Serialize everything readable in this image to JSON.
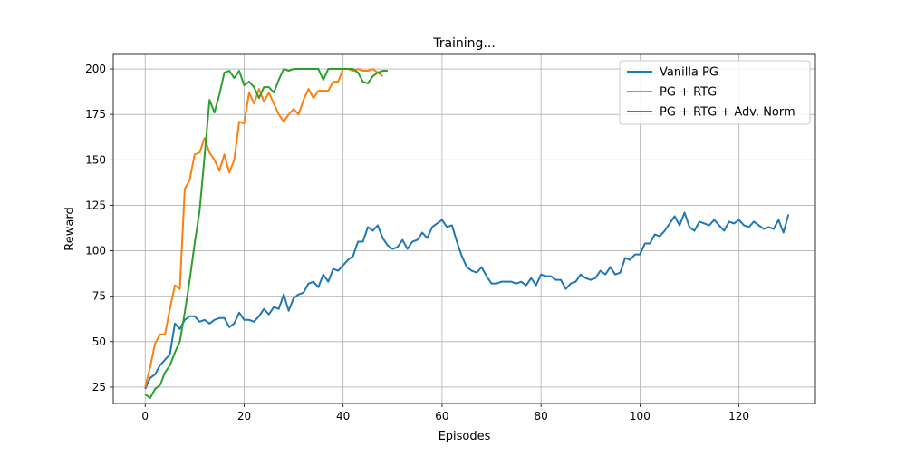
{
  "chart_data": {
    "type": "line",
    "title": "Training...",
    "xlabel": "Episodes",
    "ylabel": "Reward",
    "xlim": [
      -6.45,
      135.45
    ],
    "ylim": [
      16,
      208
    ],
    "xticks": [
      0,
      20,
      40,
      60,
      80,
      100,
      120
    ],
    "yticks": [
      25,
      50,
      75,
      100,
      125,
      150,
      175,
      200
    ],
    "grid": true,
    "legend_position": "upper right",
    "series": [
      {
        "name": "Vanilla PG",
        "color": "#1f77b4",
        "values": [
          24,
          30,
          32,
          37,
          40,
          43,
          60,
          57,
          62,
          64,
          64,
          61,
          62,
          60,
          62,
          63,
          63,
          58,
          60,
          66,
          62,
          62,
          61,
          64,
          68,
          65,
          69,
          68,
          76,
          67,
          74,
          76,
          77,
          82,
          83,
          80,
          87,
          83,
          90,
          89,
          92,
          95,
          97,
          105,
          105,
          113,
          111,
          114,
          107,
          103,
          101,
          102,
          106,
          101,
          105,
          106,
          110,
          107,
          113,
          115,
          117,
          113,
          114,
          105,
          97,
          91,
          89,
          88,
          91,
          86,
          82,
          82,
          83,
          83,
          83,
          82,
          83,
          81,
          85,
          81,
          87,
          86,
          86,
          84,
          84,
          79,
          82,
          83,
          87,
          85,
          84,
          85,
          89,
          87,
          91,
          87,
          88,
          96,
          95,
          98,
          98,
          104,
          104,
          109,
          108,
          111,
          115,
          119,
          114,
          121,
          113,
          111,
          116,
          115,
          114,
          117,
          114,
          111,
          116,
          115,
          117,
          114,
          113,
          116,
          114,
          112,
          113,
          112,
          117,
          110,
          120
        ]
      },
      {
        "name": "PG + RTG",
        "color": "#ff7f0e",
        "values": [
          25,
          36,
          49,
          54,
          54,
          68,
          81,
          79,
          134,
          139,
          153,
          154,
          162,
          154,
          150,
          144,
          153,
          143,
          150,
          171,
          170,
          187,
          181,
          189,
          182,
          187,
          181,
          175,
          171,
          175,
          178,
          175,
          183,
          189,
          184,
          188,
          188,
          188,
          193,
          193,
          200,
          200,
          199,
          200,
          199,
          199,
          200,
          198,
          196
        ]
      },
      {
        "name": "PG + RTG + Adv. Norm",
        "color": "#2ca02c",
        "values": [
          21,
          19,
          24,
          26,
          33,
          37,
          44,
          50,
          66,
          84,
          104,
          122,
          152,
          183,
          176,
          186,
          198,
          199,
          195,
          199,
          191,
          193,
          190,
          184,
          190,
          190,
          187,
          194,
          200,
          199,
          200,
          200,
          200,
          200,
          200,
          200,
          194,
          200,
          200,
          200,
          200,
          200,
          200,
          198,
          193,
          192,
          196,
          198,
          199,
          199
        ]
      }
    ]
  }
}
